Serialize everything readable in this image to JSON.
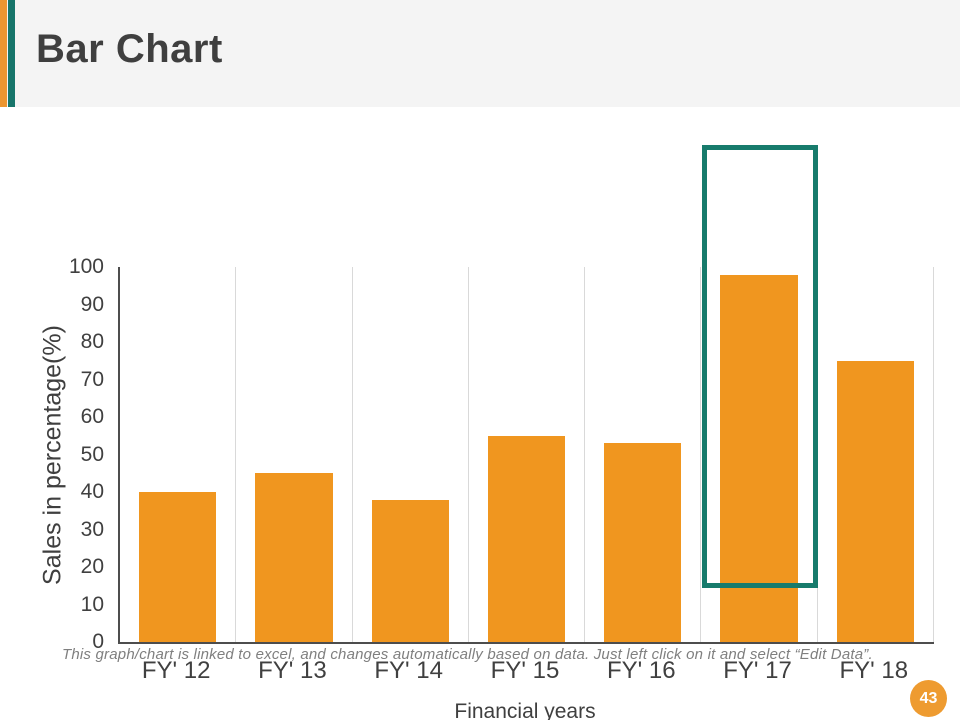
{
  "slide": {
    "title": "Bar Chart",
    "page_number": "43",
    "footnote": "This graph/chart is linked to excel, and changes automatically based on data. Just left click on it and select “Edit Data”."
  },
  "chart_data": {
    "type": "bar",
    "categories": [
      "FY' 12",
      "FY' 13",
      "FY' 14",
      "FY' 15",
      "FY' 16",
      "FY' 17",
      "FY' 18"
    ],
    "values": [
      40,
      45,
      38,
      55,
      53,
      98,
      75
    ],
    "title": "",
    "xlabel": "Financial years",
    "ylabel": "Sales in percentage(%)",
    "ylim": [
      0,
      100
    ],
    "ytick_step": 10,
    "grid": "vertical category separators",
    "legend": "none",
    "bar_color": "#F0961F",
    "highlighted_category": "FY' 17",
    "highlight_border_color": "#177B6C"
  },
  "colors": {
    "accent_orange": "#EC9630",
    "accent_teal": "#17756A",
    "header_background": "#F4F4F4",
    "title_text": "#3F3F3F",
    "axis_text": "#404040",
    "axis_line": "#4D4D4D",
    "gridline": "#D9D9D9",
    "footnote_text": "#7F7F7F",
    "badge_background": "#EE9B30"
  }
}
